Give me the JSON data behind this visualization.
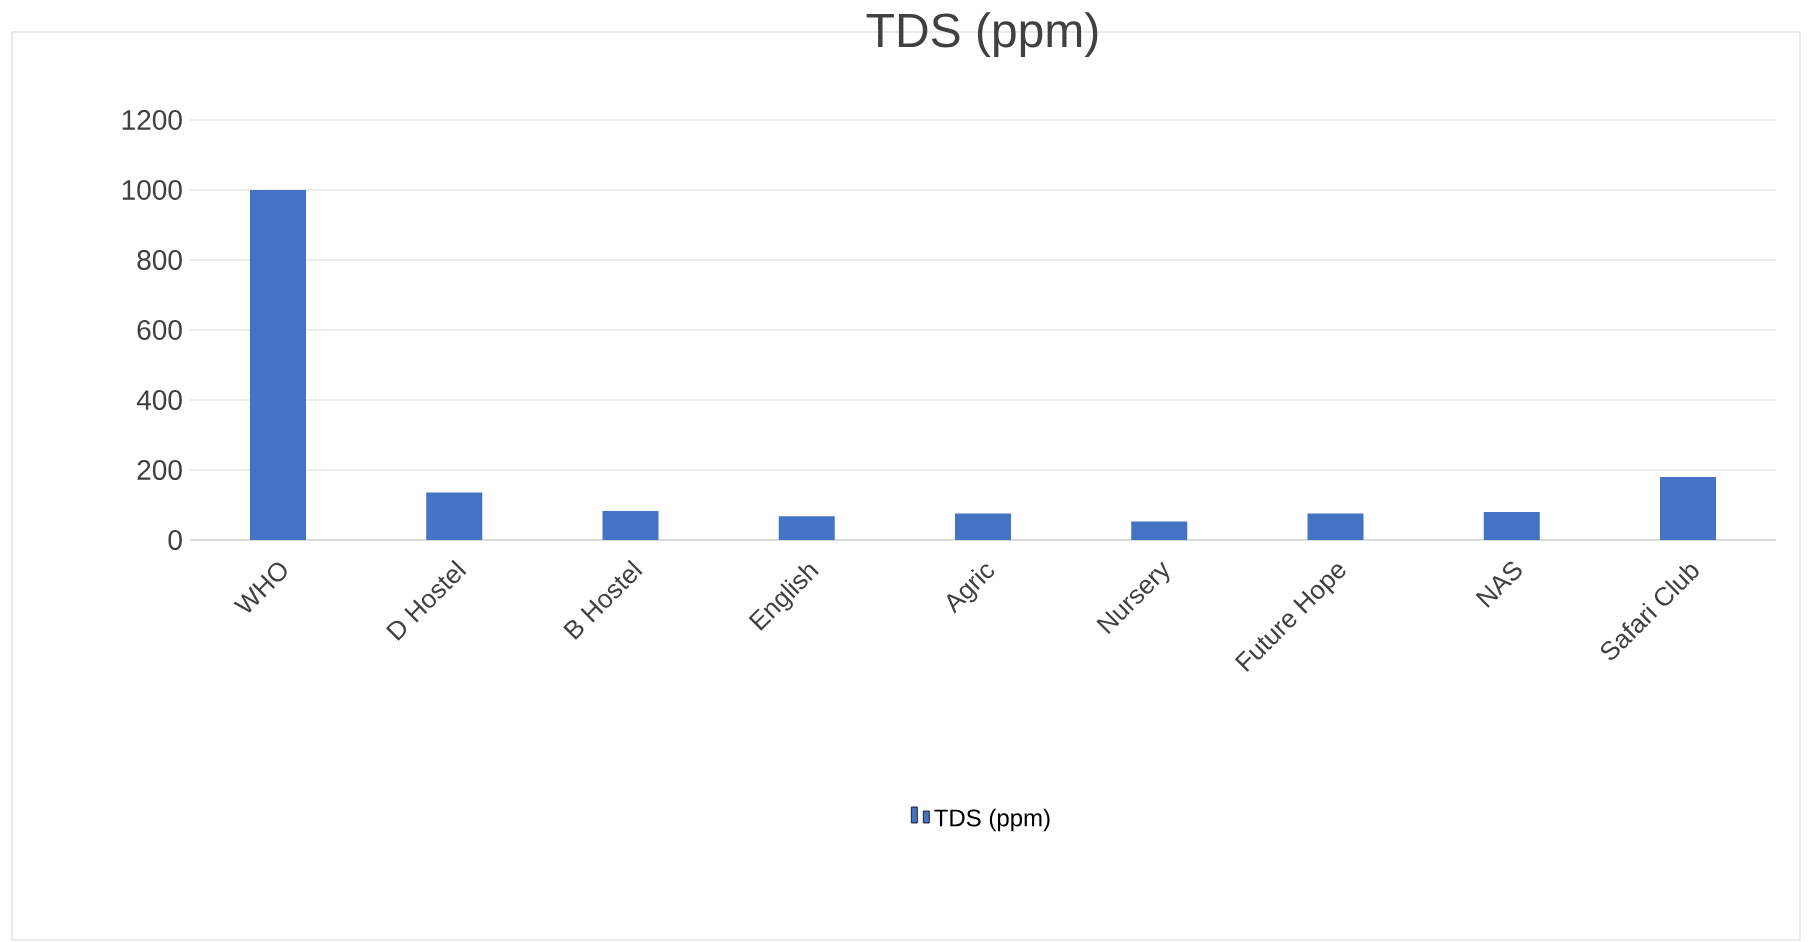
{
  "chart_data": {
    "type": "bar",
    "title": "TDS (ppm)",
    "categories": [
      "WHO",
      "D Hostel",
      "B Hostel",
      "English",
      "Agric",
      "Nursery",
      "Future Hope",
      "NAS",
      "Safari Club"
    ],
    "series": [
      {
        "name": "TDS (ppm)",
        "color": "#4472c4",
        "values": [
          1000,
          136,
          83,
          68,
          76,
          53,
          76,
          80,
          180
        ]
      }
    ],
    "ylim": [
      0,
      1200
    ],
    "yticks": [
      0,
      200,
      400,
      600,
      800,
      1000,
      1200
    ],
    "grid": "y",
    "legend": "bottom"
  }
}
